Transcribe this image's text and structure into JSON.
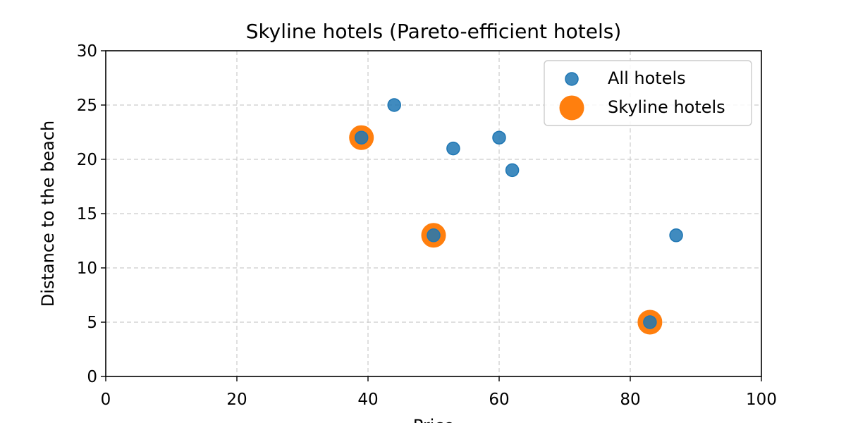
{
  "chart_data": {
    "type": "scatter",
    "title": "Skyline hotels (Pareto-efficient hotels)",
    "xlabel": "Price",
    "ylabel": "Distance to the beach",
    "xlim": [
      0,
      100
    ],
    "ylim": [
      0,
      30
    ],
    "xticks": [
      0,
      20,
      40,
      60,
      80,
      100
    ],
    "yticks": [
      0,
      5,
      10,
      15,
      20,
      25,
      30
    ],
    "grid": true,
    "legend_position": "top-right",
    "series": [
      {
        "name": "Skyline hotels",
        "color": "#ff7f0e",
        "points": [
          [
            39,
            22
          ],
          [
            50,
            13
          ],
          [
            83,
            5
          ]
        ]
      },
      {
        "name": "All hotels",
        "color": "#1f77b4",
        "points": [
          [
            44,
            25
          ],
          [
            39,
            22
          ],
          [
            53,
            21
          ],
          [
            60,
            22
          ],
          [
            62,
            19
          ],
          [
            50,
            13
          ],
          [
            87,
            13
          ],
          [
            83,
            5
          ]
        ]
      }
    ],
    "legend": [
      "All hotels",
      "Skyline hotels"
    ]
  }
}
